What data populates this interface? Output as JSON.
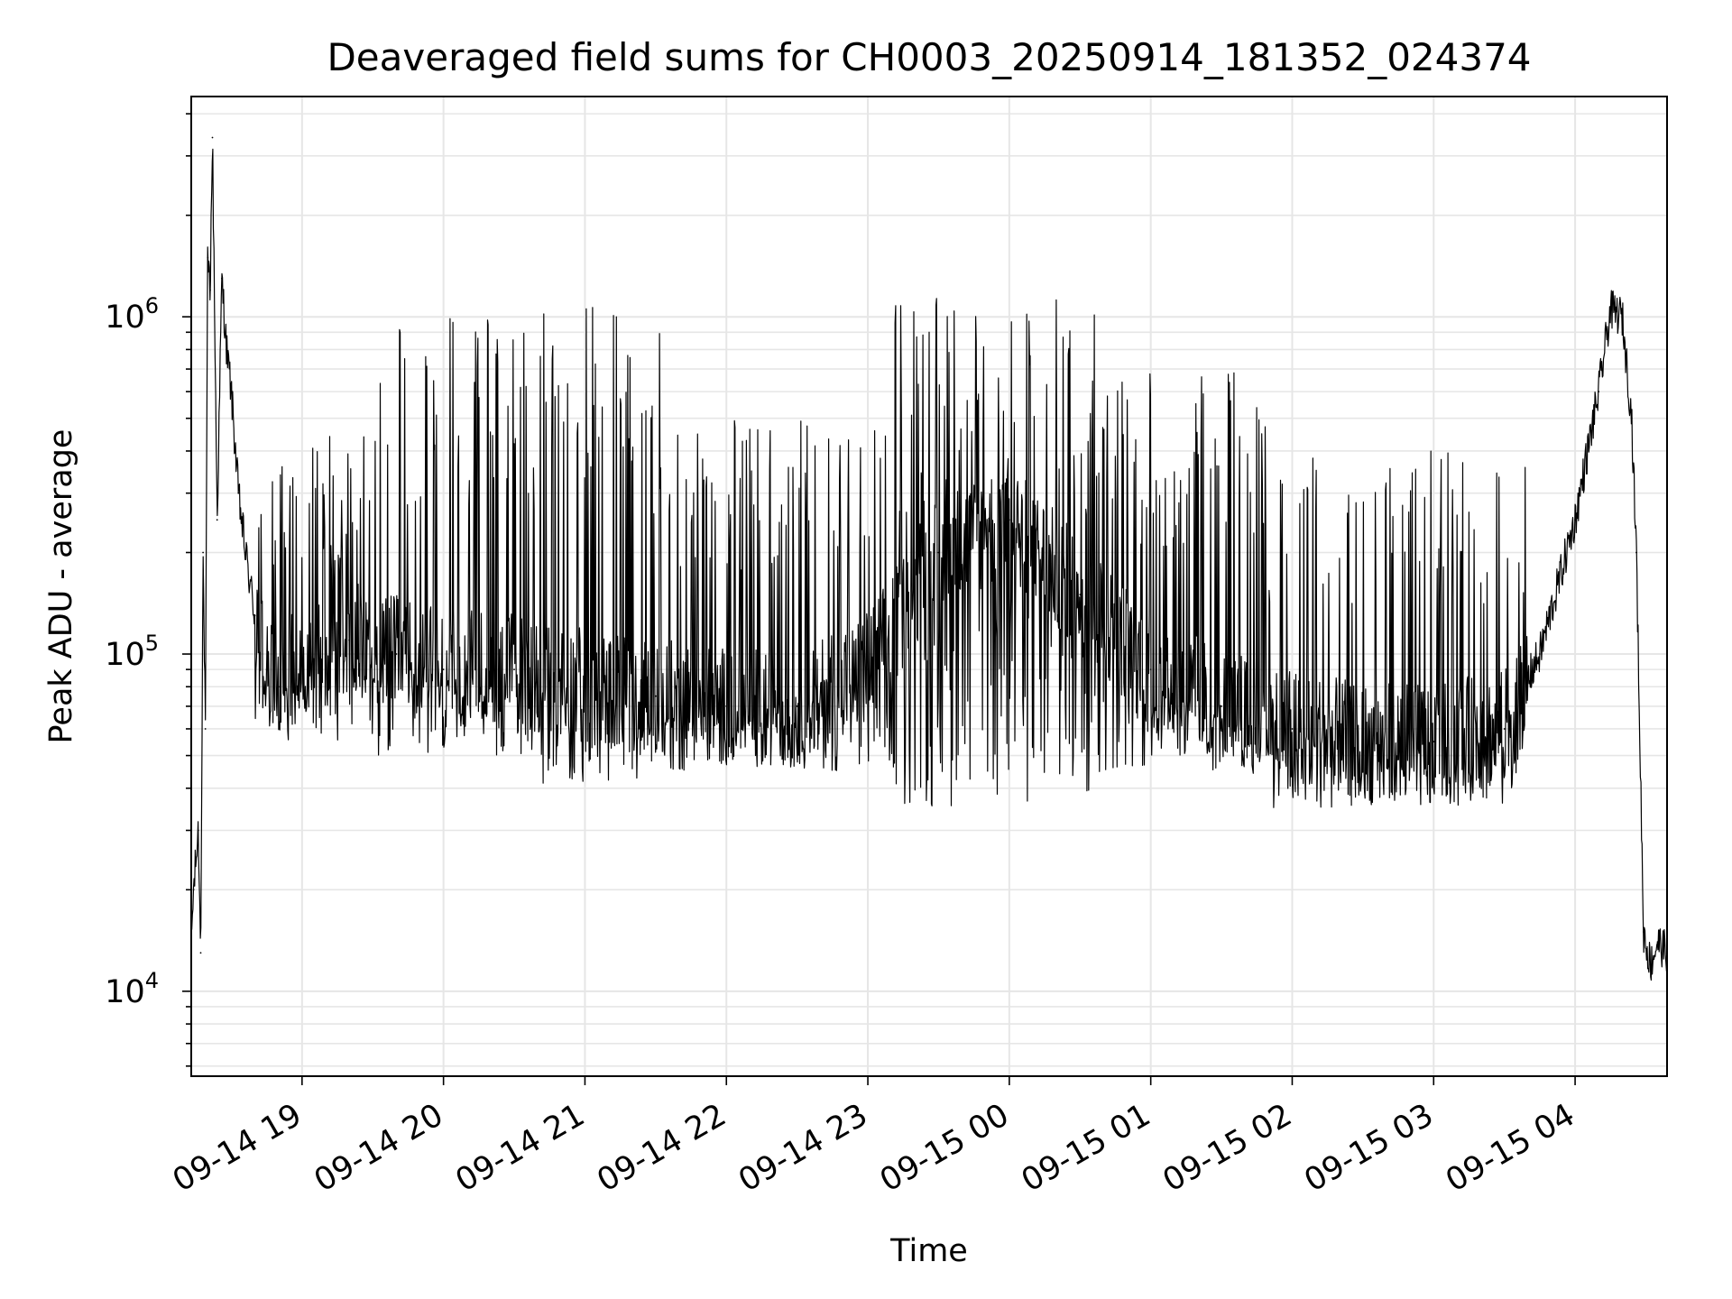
{
  "chart_data": {
    "type": "line",
    "title": "Deaveraged field sums for CH0003_20250914_181352_024374",
    "xlabel": "Time",
    "ylabel": "Peak ADU - average",
    "y_scale": "log",
    "ylim": [
      5600,
      4500000
    ],
    "xlim": [
      "2025-09-14 18:13",
      "2025-09-15 04:39"
    ],
    "grid": true,
    "grid_color": "#e6e6e6",
    "line_color": "#000000",
    "x_ticks": [
      {
        "label": "09-14 19",
        "t": "2025-09-14 19:00"
      },
      {
        "label": "09-14 20",
        "t": "2025-09-14 20:00"
      },
      {
        "label": "09-14 21",
        "t": "2025-09-14 21:00"
      },
      {
        "label": "09-14 22",
        "t": "2025-09-14 22:00"
      },
      {
        "label": "09-14 23",
        "t": "2025-09-14 23:00"
      },
      {
        "label": "09-15 00",
        "t": "2025-09-15 00:00"
      },
      {
        "label": "09-15 01",
        "t": "2025-09-15 01:00"
      },
      {
        "label": "09-15 02",
        "t": "2025-09-15 02:00"
      },
      {
        "label": "09-15 03",
        "t": "2025-09-15 03:00"
      },
      {
        "label": "09-15 04",
        "t": "2025-09-15 04:00"
      }
    ],
    "y_ticks": [
      {
        "base": "10",
        "exp": "4",
        "value": 10000
      },
      {
        "base": "10",
        "exp": "5",
        "value": 100000
      },
      {
        "base": "10",
        "exp": "6",
        "value": 1000000
      }
    ],
    "series": [
      {
        "points": [
          [
            "2025-09-14 18:13",
            14000
          ],
          [
            "2025-09-14 18:14",
            20000
          ],
          [
            "2025-09-14 18:16",
            30000
          ],
          [
            "2025-09-14 18:17",
            13000
          ],
          [
            "2025-09-14 18:18",
            200000
          ],
          [
            "2025-09-14 18:19",
            60000
          ],
          [
            "2025-09-14 18:20",
            1500000
          ],
          [
            "2025-09-14 18:21",
            1200000
          ],
          [
            "2025-09-14 18:22",
            3400000
          ],
          [
            "2025-09-14 18:24",
            250000
          ],
          [
            "2025-09-14 18:26",
            1300000
          ],
          [
            "2025-09-14 18:28",
            800000
          ],
          [
            "2025-09-14 18:30",
            600000
          ],
          [
            "2025-09-14 18:33",
            300000
          ],
          [
            "2025-09-14 18:36",
            200000
          ],
          [
            "2025-09-14 18:40",
            130000
          ],
          [
            "2025-09-14 18:45",
            90000
          ],
          [
            "2025-09-14 18:50",
            80000
          ],
          [
            "2025-09-14 19:00",
            100000
          ],
          [
            "2025-09-14 19:20",
            110000
          ],
          [
            "2025-09-14 19:40",
            100000
          ],
          [
            "2025-09-14 20:00",
            90000
          ],
          [
            "2025-09-14 20:30",
            90000
          ],
          [
            "2025-09-14 21:00",
            80000
          ],
          [
            "2025-09-14 21:30",
            75000
          ],
          [
            "2025-09-14 22:00",
            70000
          ],
          [
            "2025-09-14 22:30",
            70000
          ],
          [
            "2025-09-14 23:00",
            90000
          ],
          [
            "2025-09-14 23:30",
            200000
          ],
          [
            "2025-09-15 00:00",
            250000
          ],
          [
            "2025-09-15 00:30",
            150000
          ],
          [
            "2025-09-15 01:00",
            90000
          ],
          [
            "2025-09-15 01:30",
            70000
          ],
          [
            "2025-09-15 02:00",
            60000
          ],
          [
            "2025-09-15 02:30",
            55000
          ],
          [
            "2025-09-15 03:00",
            55000
          ],
          [
            "2025-09-15 03:30",
            60000
          ],
          [
            "2025-09-15 03:45",
            100000
          ],
          [
            "2025-09-15 04:00",
            250000
          ],
          [
            "2025-09-15 04:10",
            600000
          ],
          [
            "2025-09-15 04:15",
            1050000
          ],
          [
            "2025-09-15 04:20",
            1000000
          ],
          [
            "2025-09-15 04:24",
            500000
          ],
          [
            "2025-09-15 04:26",
            200000
          ],
          [
            "2025-09-15 04:29",
            15000
          ],
          [
            "2025-09-15 04:32",
            12000
          ],
          [
            "2025-09-15 04:35",
            14000
          ],
          [
            "2025-09-15 04:39",
            13000
          ]
        ],
        "noise_envelope": [
          {
            "from": "2025-09-14 18:40",
            "to": "2025-09-14 19:30",
            "low": 55000,
            "high": 450000
          },
          {
            "from": "2025-09-14 19:30",
            "to": "2025-09-14 20:40",
            "low": 50000,
            "high": 1000000
          },
          {
            "from": "2025-09-14 20:40",
            "to": "2025-09-14 21:35",
            "low": 40000,
            "high": 1100000
          },
          {
            "from": "2025-09-14 21:35",
            "to": "2025-09-14 23:10",
            "low": 45000,
            "high": 500000
          },
          {
            "from": "2025-09-14 23:10",
            "to": "2025-09-15 00:40",
            "low": 35000,
            "high": 1150000
          },
          {
            "from": "2025-09-15 00:40",
            "to": "2025-09-15 01:50",
            "low": 45000,
            "high": 700000
          },
          {
            "from": "2025-09-15 01:50",
            "to": "2025-09-15 03:40",
            "low": 35000,
            "high": 400000
          }
        ]
      }
    ]
  }
}
